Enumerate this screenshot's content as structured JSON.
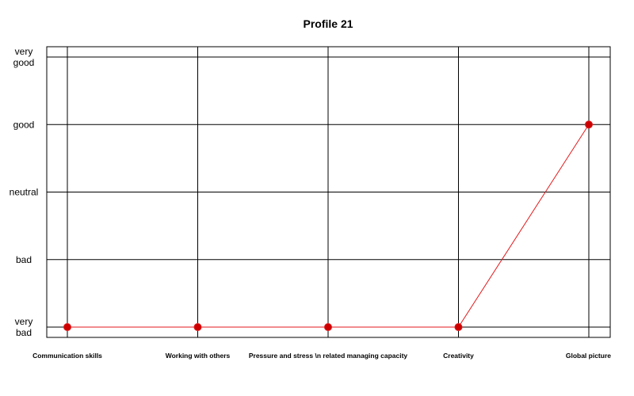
{
  "chart_data": {
    "type": "line",
    "title": "Profile 21",
    "xlabel": "",
    "ylabel": "",
    "categories": [
      "Communication skills",
      "Working with others",
      "Pressure and stress \\n related managing capacity",
      "Creativity",
      "Global picture"
    ],
    "y_levels": [
      "very bad",
      "bad",
      "neutral",
      "good",
      "very good"
    ],
    "ylim": [
      1,
      5
    ],
    "series": [
      {
        "values": [
          1,
          1,
          1,
          1,
          4
        ]
      }
    ],
    "grid": true,
    "line_color": "#e31a1c",
    "marker_color": "#cc0000",
    "grid_color": "#000000"
  }
}
